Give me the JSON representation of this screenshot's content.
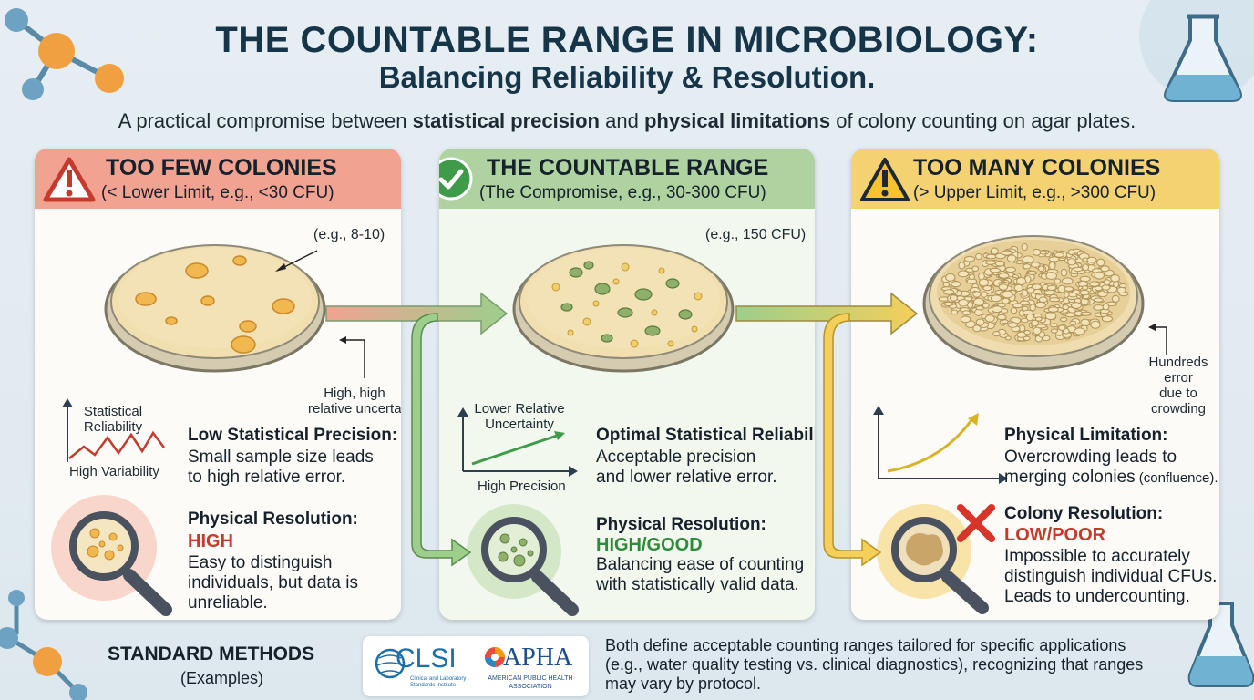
{
  "header": {
    "title": "THE COUNTABLE RANGE IN MICROBIOLOGY:",
    "subtitle": "Balancing Reliability & Resolution.",
    "tagline_pre": "A practical compromise between ",
    "tagline_b1": "statistical precision",
    "tagline_mid": " and ",
    "tagline_b2": "physical limitations",
    "tagline_post": " of colony counting on agar plates."
  },
  "panels": {
    "few": {
      "title": "TOO FEW COLONIES",
      "range": "(< Lower Limit, e.g., <30 CFU)",
      "plate_label": "(e.g., 8-10)",
      "uncertainty_label1": "High, high",
      "uncertainty_label2": "relative uncertainty",
      "graph_label_y1": "Statistical",
      "graph_label_y2": "Reliability",
      "graph_label_x": "High Variability",
      "stat_title": "Low Statistical Precision:",
      "stat_body1": "Small sample size leads",
      "stat_body2": "to high relative error.",
      "res_title": "Physical Resolution:",
      "res_value": "HIGH",
      "res_body1": "Easy to distinguish",
      "res_body2": "individuals, but data is",
      "res_body3": "unreliable.",
      "color": "#f2a291"
    },
    "countable": {
      "title": "THE COUNTABLE RANGE",
      "range": "(The Compromise, e.g., 30-300 CFU)",
      "plate_label": "(e.g., 150 CFU)",
      "graph_label_y1": "Lower Relative",
      "graph_label_y2": "Uncertainty",
      "graph_label_x": "High Precision",
      "stat_title": "Optimal Statistical Reliability:",
      "stat_body1": "Acceptable precision",
      "stat_body2": "and lower relative error.",
      "res_title": "Physical Resolution:",
      "res_value": "HIGH/GOOD",
      "res_body1": "Balancing ease of counting",
      "res_body2": "with statistically valid data.",
      "color": "#aed3a0"
    },
    "many": {
      "title": "TOO MANY COLONIES",
      "range": "(> Upper Limit, e.g., >300 CFU)",
      "plate_label1": "Hundreds",
      "plate_label2": "error",
      "plate_label3": "due to",
      "plate_label4": "crowding",
      "stat_title": "Physical Limitation:",
      "stat_body1": "Overcrowding leads to",
      "stat_body2": "merging colonies",
      "stat_body2_small": " (confluence).",
      "res_title": "Colony Resolution:",
      "res_value": "LOW/POOR",
      "res_body1": "Impossible to accurately",
      "res_body2": "distinguish individual CFUs.",
      "res_body3": "Leads to undercounting.",
      "color": "#f4d271"
    }
  },
  "footer": {
    "title": "STANDARD METHODS",
    "subtitle": "(Examples)",
    "logo1": "CLSI",
    "logo1_sub1": "Clinical and Laboratory",
    "logo1_sub2": "Standards Institute",
    "logo2": "APHA",
    "logo2_sub1": "AMERICAN PUBLIC HEALTH",
    "logo2_sub2": "ASSOCIATION",
    "text1": "Both define acceptable counting ranges tailored for specific applications",
    "text2": "(e.g., water quality testing vs. clinical diagnostics), recognizing that ranges",
    "text3": "may vary by protocol."
  },
  "icons": [
    "warning-icon",
    "checkmark-icon",
    "caution-icon",
    "molecule-icon",
    "flask-icon",
    "magnifier-icon",
    "cross-icon"
  ]
}
